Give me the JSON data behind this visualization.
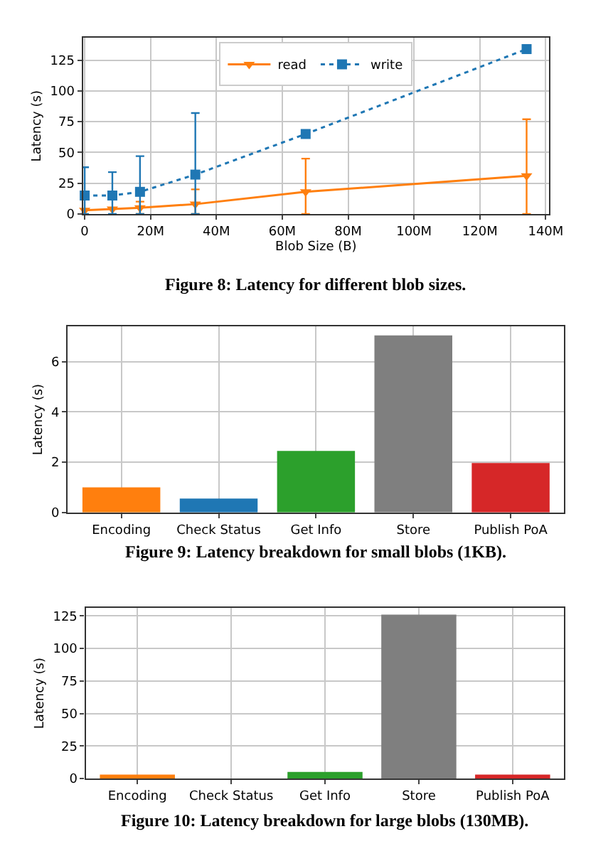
{
  "chart_data": [
    {
      "type": "line",
      "title": "Figure 8: Latency for different blob sizes.",
      "xlabel": "Blob Size (B)",
      "ylabel": "Latency (s)",
      "x": [
        0,
        8400000,
        16800000,
        33600000,
        67100000,
        134200000
      ],
      "series": [
        {
          "name": "read",
          "color": "#ff7f0e",
          "marker": "triangle",
          "line_style": "solid",
          "values": [
            3,
            4,
            5,
            8,
            18,
            31
          ],
          "errors": [
            null,
            null,
            [
              0,
              10
            ],
            [
              0,
              20
            ],
            [
              0,
              45
            ],
            [
              0,
              77
            ]
          ]
        },
        {
          "name": "write",
          "color": "#1f77b4",
          "marker": "square",
          "line_style": "dotted",
          "values": [
            15,
            15,
            18,
            32,
            65,
            134
          ],
          "errors": [
            [
              0,
              38
            ],
            [
              0,
              34
            ],
            [
              0,
              47
            ],
            [
              0,
              82
            ],
            null,
            null
          ]
        }
      ],
      "xlim": [
        -500000,
        141000000
      ],
      "xticks": [
        0,
        {
          "value": 20000000,
          "label": "20M"
        },
        {
          "value": 40000000,
          "label": "40M"
        },
        {
          "value": 60000000,
          "label": "60M"
        },
        {
          "value": 80000000,
          "label": "80M"
        },
        {
          "value": 100000000,
          "label": "100M"
        },
        {
          "value": 120000000,
          "label": "120M"
        },
        {
          "value": 140000000,
          "label": "140M"
        }
      ],
      "ylim": [
        0,
        143
      ],
      "yticks": [
        0,
        25,
        50,
        75,
        100,
        125
      ],
      "grid": true,
      "legend": "top"
    },
    {
      "type": "bar",
      "title": "Figure 9: Latency breakdown for small blobs (1KB).",
      "ylabel": "Latency (s)",
      "categories": [
        "Encoding",
        "Check Status",
        "Get Info",
        "Store",
        "Publish PoA"
      ],
      "values": [
        1.0,
        0.55,
        2.45,
        7.05,
        1.97
      ],
      "colors": [
        "#ff7f0e",
        "#1f77b4",
        "#2ca02c",
        "#7f7f7f",
        "#d62728"
      ],
      "ylim": [
        0,
        7.4
      ],
      "yticks": [
        0,
        2,
        4,
        6
      ],
      "grid": true
    },
    {
      "type": "bar",
      "title": "Figure 10: Latency breakdown for large blobs (130MB).",
      "ylabel": "Latency (s)",
      "categories": [
        "Encoding",
        "Check Status",
        "Get Info",
        "Store",
        "Publish PoA"
      ],
      "values": [
        3,
        0,
        5,
        126,
        3
      ],
      "colors": [
        "#ff7f0e",
        "#1f77b4",
        "#2ca02c",
        "#7f7f7f",
        "#d62728"
      ],
      "ylim": [
        0,
        131
      ],
      "yticks": [
        0,
        25,
        50,
        75,
        100,
        125
      ],
      "grid": true
    }
  ]
}
